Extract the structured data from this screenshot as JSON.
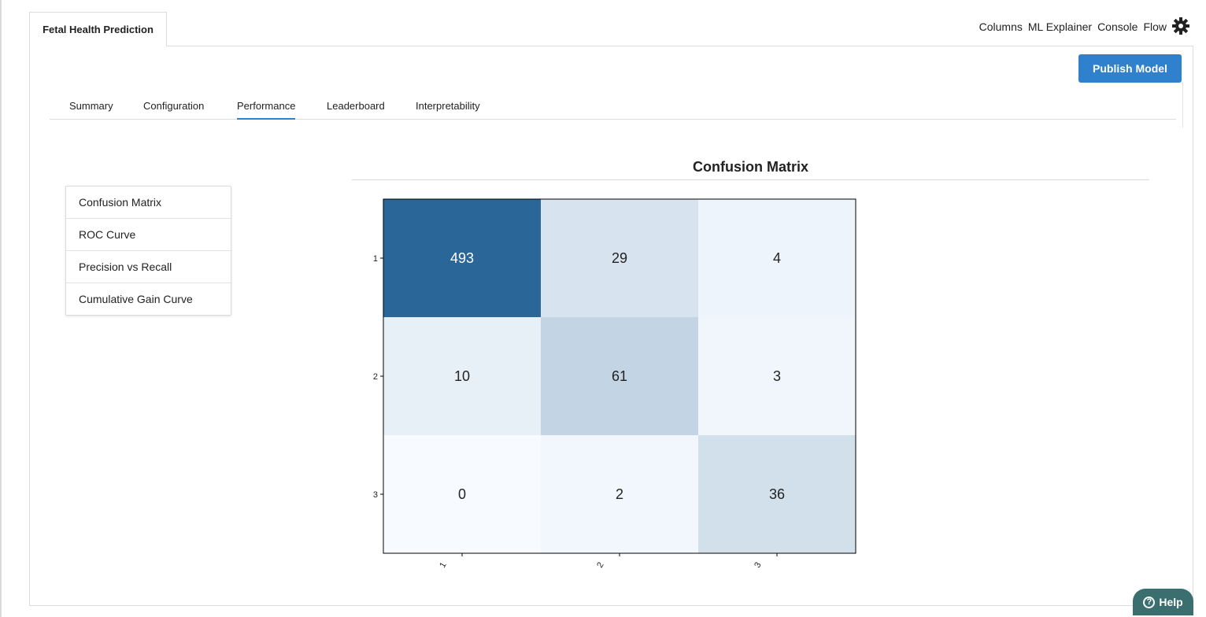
{
  "app": {
    "tab_title": "Fetal Health Prediction",
    "top_links": [
      "Columns",
      "ML Explainer",
      "Console",
      "Flow"
    ],
    "publish_label": "Publish Model",
    "help_label": "Help",
    "help_icon": "?"
  },
  "subtabs": [
    {
      "label": "Summary"
    },
    {
      "label": "Configuration"
    },
    {
      "label": "Performance",
      "active": true
    },
    {
      "label": "Leaderboard"
    },
    {
      "label": "Interpretability"
    }
  ],
  "sidebar": {
    "items": [
      {
        "label": "Confusion Matrix"
      },
      {
        "label": "ROC Curve"
      },
      {
        "label": "Precision vs Recall"
      },
      {
        "label": "Cumulative Gain Curve"
      }
    ]
  },
  "colors": {
    "accent": "#2f80cd",
    "help": "#3a6e6f",
    "heat_max": "#2b6699"
  },
  "chart_data": {
    "type": "heatmap",
    "title": "Confusion Matrix",
    "row_labels": [
      "1",
      "2",
      "3"
    ],
    "col_labels": [
      "1",
      "2",
      "3"
    ],
    "values": [
      [
        493,
        29,
        4
      ],
      [
        10,
        61,
        3
      ],
      [
        0,
        2,
        36
      ]
    ]
  }
}
